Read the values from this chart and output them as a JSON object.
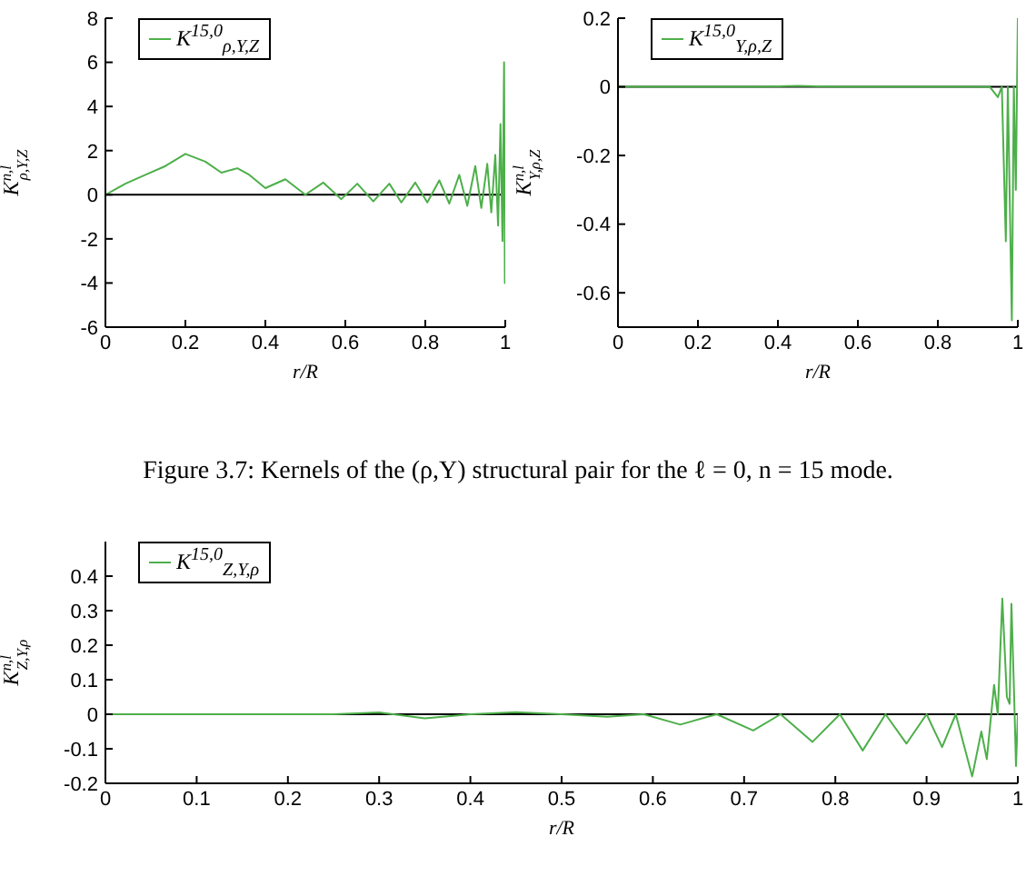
{
  "chart_data": [
    {
      "type": "line",
      "xlabel": "r/R",
      "ylabel": "K$^{n,l}$$_{ρ,Y,Z}$",
      "legend": "top left",
      "x": [
        0,
        0.05,
        0.1,
        0.15,
        0.2,
        0.25,
        0.29,
        0.33,
        0.36,
        0.4,
        0.45,
        0.5,
        0.545,
        0.59,
        0.63,
        0.67,
        0.71,
        0.74,
        0.775,
        0.805,
        0.835,
        0.86,
        0.885,
        0.905,
        0.925,
        0.94,
        0.955,
        0.965,
        0.975,
        0.982,
        0.988,
        0.993,
        0.997,
        0.999,
        1
      ],
      "series": [
        {
          "name": "K$^{15,0}$$_{ρ,Y,Z}$",
          "color": "#4daf4a",
          "values": [
            0,
            0.5,
            0.9,
            1.3,
            1.85,
            1.5,
            1.0,
            1.2,
            0.9,
            0.3,
            0.7,
            0,
            0.55,
            -0.2,
            0.5,
            -0.3,
            0.5,
            -0.35,
            0.55,
            -0.35,
            0.65,
            -0.4,
            0.9,
            -0.5,
            1.3,
            -0.6,
            1.4,
            -0.8,
            1.8,
            -1.4,
            3.2,
            -2.1,
            6.0,
            -4.0,
            0.5
          ]
        }
      ],
      "xlim": [
        0,
        1
      ],
      "xticks": [
        0,
        0.2,
        0.4,
        0.6,
        0.8,
        1
      ],
      "ylim": [
        -6,
        8
      ],
      "yticks": [
        -6,
        -4,
        -2,
        0,
        2,
        4,
        6,
        8
      ],
      "ref_lines": [
        {
          "axis": "y",
          "value": 0,
          "color": "#000000"
        }
      ],
      "annotations": [
        "Figure 3.7: Kernels of the (ρ,Y) structural pair for the ℓ = 0, n = 15 mode."
      ]
    },
    {
      "type": "line",
      "xlabel": "r/R",
      "ylabel": "K$^{n,l}$$_{Y,ρ,Z}$",
      "legend": "top left",
      "x": [
        0,
        0.35,
        0.45,
        0.55,
        0.93,
        0.95,
        0.96,
        0.97,
        0.975,
        0.985,
        0.99,
        0.995,
        1
      ],
      "series": [
        {
          "name": "K$^{15,0}$$_{Y,ρ,Z}$",
          "color": "#4daf4a",
          "values": [
            0,
            0,
            0.003,
            0,
            0,
            -0.03,
            0,
            -0.45,
            0,
            -0.68,
            0,
            -0.3,
            0.2
          ]
        }
      ],
      "xlim": [
        0,
        1
      ],
      "xticks": [
        0,
        0.2,
        0.4,
        0.6,
        0.8,
        1
      ],
      "ylim": [
        -0.7,
        0.2
      ],
      "yticks": [
        -0.6,
        -0.4,
        -0.2,
        0,
        0.2
      ],
      "ref_lines": [
        {
          "axis": "y",
          "value": 0,
          "color": "#000000"
        }
      ]
    },
    {
      "type": "line",
      "xlabel": "r/R",
      "ylabel": "K$^{n,l}$$_{Z,Y,ρ}$",
      "legend": "top left",
      "x": [
        0,
        0.25,
        0.3,
        0.35,
        0.4,
        0.45,
        0.5,
        0.55,
        0.59,
        0.63,
        0.67,
        0.71,
        0.74,
        0.775,
        0.805,
        0.83,
        0.855,
        0.878,
        0.9,
        0.917,
        0.932,
        0.95,
        0.96,
        0.966,
        0.974,
        0.978,
        0.983,
        0.988,
        0.991,
        0.993,
        0.996,
        0.998,
        1
      ],
      "series": [
        {
          "name": "K$^{15,0}$$_{Z,Y,ρ}$",
          "color": "#4daf4a",
          "values": [
            0,
            0,
            0.005,
            -0.012,
            0,
            0.006,
            0,
            -0.007,
            0,
            -0.03,
            0,
            -0.047,
            0,
            -0.08,
            0,
            -0.105,
            0,
            -0.085,
            0,
            -0.095,
            0,
            -0.18,
            -0.05,
            -0.13,
            0.085,
            0,
            0.335,
            0.05,
            0.03,
            0.32,
            0.05,
            -0.15,
            0
          ]
        }
      ],
      "xlim": [
        0,
        1
      ],
      "xticks": [
        0,
        0.1,
        0.2,
        0.3,
        0.4,
        0.5,
        0.6,
        0.7,
        0.8,
        0.9,
        1
      ],
      "ylim": [
        -0.2,
        0.5
      ],
      "yticks": [
        -0.2,
        -0.1,
        0,
        0.1,
        0.2,
        0.3,
        0.4
      ],
      "ref_lines": [
        {
          "axis": "y",
          "value": 0,
          "color": "#000000"
        }
      ]
    }
  ]
}
